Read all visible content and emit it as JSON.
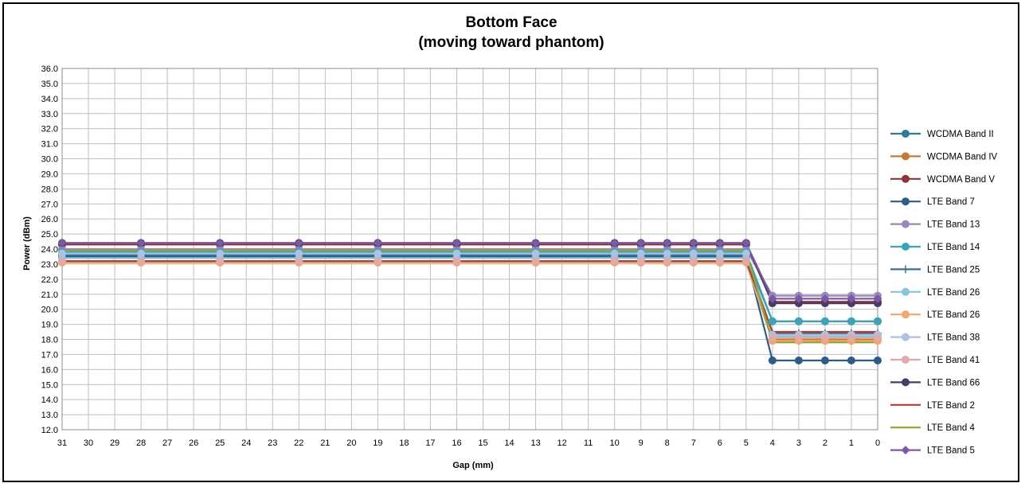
{
  "chart_data": {
    "type": "line",
    "title": "Bottom Face",
    "subtitle": "(moving toward phantom)",
    "xlabel": "Gap (mm)",
    "ylabel": "Power (dBm)",
    "ylim": [
      12.0,
      36.0
    ],
    "ytick_step": 1.0,
    "x_reversed": true,
    "grid": true,
    "legend_position": "right",
    "x": [
      31,
      28,
      25,
      22,
      19,
      16,
      13,
      10,
      9,
      8,
      7,
      6,
      5,
      4,
      3,
      2,
      1,
      0
    ],
    "x_tick_labels": [
      "31",
      "30",
      "29",
      "28",
      "27",
      "26",
      "25",
      "24",
      "23",
      "22",
      "21",
      "20",
      "19",
      "18",
      "17",
      "16",
      "15",
      "14",
      "13",
      "12",
      "11",
      "10",
      "9",
      "8",
      "7",
      "6",
      "5",
      "4",
      "3",
      "2",
      "1",
      "0"
    ],
    "series": [
      {
        "name": "WCDMA Band II",
        "color": "#2e7d95",
        "marker": "circle",
        "values": [
          23.6,
          23.6,
          23.6,
          23.6,
          23.6,
          23.6,
          23.6,
          23.6,
          23.6,
          23.6,
          23.6,
          23.6,
          23.6,
          19.2,
          19.2,
          19.2,
          19.2,
          19.2
        ]
      },
      {
        "name": "WCDMA Band IV",
        "color": "#c8782e",
        "marker": "circle",
        "values": [
          23.5,
          23.5,
          23.5,
          23.5,
          23.5,
          23.5,
          23.5,
          23.5,
          23.5,
          23.5,
          23.5,
          23.5,
          23.5,
          18.0,
          18.0,
          18.0,
          18.0,
          18.0
        ]
      },
      {
        "name": "WCDMA Band V",
        "color": "#8e3535",
        "marker": "circle",
        "values": [
          24.3,
          24.3,
          24.3,
          24.3,
          24.3,
          24.3,
          24.3,
          24.3,
          24.3,
          24.3,
          24.3,
          24.3,
          24.3,
          20.5,
          20.5,
          20.5,
          20.5,
          20.5
        ]
      },
      {
        "name": "LTE Band 7",
        "color": "#2e5c8a",
        "marker": "circle",
        "values": [
          23.5,
          23.5,
          23.5,
          23.5,
          23.5,
          23.5,
          23.5,
          23.5,
          23.5,
          23.5,
          23.5,
          23.5,
          23.5,
          16.6,
          16.6,
          16.6,
          16.6,
          16.6
        ]
      },
      {
        "name": "LTE Band 13",
        "color": "#9a86b8",
        "marker": "circle",
        "values": [
          24.0,
          24.0,
          24.0,
          24.0,
          24.0,
          24.0,
          24.0,
          24.0,
          24.0,
          24.0,
          24.0,
          24.0,
          24.0,
          20.9,
          20.9,
          20.9,
          20.9,
          20.9
        ]
      },
      {
        "name": "LTE Band 14",
        "color": "#3aa4b8",
        "marker": "circle",
        "values": [
          23.8,
          23.8,
          23.8,
          23.8,
          23.8,
          23.8,
          23.8,
          23.8,
          23.8,
          23.8,
          23.8,
          23.8,
          23.8,
          19.2,
          19.2,
          19.2,
          19.2,
          19.2
        ]
      },
      {
        "name": "LTE Band 25",
        "color": "#3a6e9a",
        "marker": "plus",
        "values": [
          23.6,
          23.6,
          23.6,
          23.6,
          23.6,
          23.6,
          23.6,
          23.6,
          23.6,
          23.6,
          23.6,
          23.6,
          23.6,
          18.4,
          18.4,
          18.4,
          18.4,
          18.4
        ]
      },
      {
        "name": "LTE Band 26",
        "color": "#86c5dc",
        "marker": "circle",
        "values": [
          23.4,
          23.4,
          23.4,
          23.4,
          23.4,
          23.4,
          23.4,
          23.4,
          23.4,
          23.4,
          23.4,
          23.4,
          23.4,
          18.2,
          18.2,
          18.2,
          18.2,
          18.2
        ]
      },
      {
        "name": "LTE Band 26",
        "color": "#f4a66a",
        "marker": "circle",
        "values": [
          23.1,
          23.1,
          23.1,
          23.1,
          23.1,
          23.1,
          23.1,
          23.1,
          23.1,
          23.1,
          23.1,
          23.1,
          23.1,
          17.9,
          17.9,
          17.9,
          17.9,
          17.9
        ]
      },
      {
        "name": "LTE Band 38",
        "color": "#aac3e0",
        "marker": "circle",
        "values": [
          23.7,
          23.7,
          23.7,
          23.7,
          23.7,
          23.7,
          23.7,
          23.7,
          23.7,
          23.7,
          23.7,
          23.7,
          23.7,
          18.3,
          18.3,
          18.3,
          18.3,
          18.3
        ]
      },
      {
        "name": "LTE Band 41",
        "color": "#e0aaa8",
        "marker": "circle",
        "values": [
          23.2,
          23.2,
          23.2,
          23.2,
          23.2,
          23.2,
          23.2,
          23.2,
          23.2,
          23.2,
          23.2,
          23.2,
          23.2,
          18.1,
          18.1,
          18.1,
          18.1,
          18.1
        ]
      },
      {
        "name": "LTE Band 66",
        "color": "#4a3a6a",
        "marker": "circle",
        "values": [
          24.4,
          24.4,
          24.4,
          24.4,
          24.4,
          24.4,
          24.4,
          24.4,
          24.4,
          24.4,
          24.4,
          24.4,
          24.4,
          20.4,
          20.4,
          20.4,
          20.4,
          20.4
        ]
      },
      {
        "name": "LTE Band 2",
        "color": "#b04030",
        "marker": "none",
        "values": [
          23.2,
          23.2,
          23.2,
          23.2,
          23.2,
          23.2,
          23.2,
          23.2,
          23.2,
          23.2,
          23.2,
          23.2,
          23.2,
          18.5,
          18.5,
          18.5,
          18.5,
          18.5
        ]
      },
      {
        "name": "LTE Band 4",
        "color": "#8aa832",
        "marker": "none",
        "values": [
          23.9,
          23.9,
          23.9,
          23.9,
          23.9,
          23.9,
          23.9,
          23.9,
          23.9,
          23.9,
          23.9,
          23.9,
          23.9,
          17.8,
          17.8,
          17.8,
          17.8,
          17.8
        ]
      },
      {
        "name": "LTE Band 5",
        "color": "#7e58a8",
        "marker": "diamond",
        "values": [
          24.4,
          24.4,
          24.4,
          24.4,
          24.4,
          24.4,
          24.4,
          24.4,
          24.4,
          24.4,
          24.4,
          24.4,
          24.4,
          20.7,
          20.7,
          20.7,
          20.7,
          20.7
        ]
      }
    ]
  }
}
